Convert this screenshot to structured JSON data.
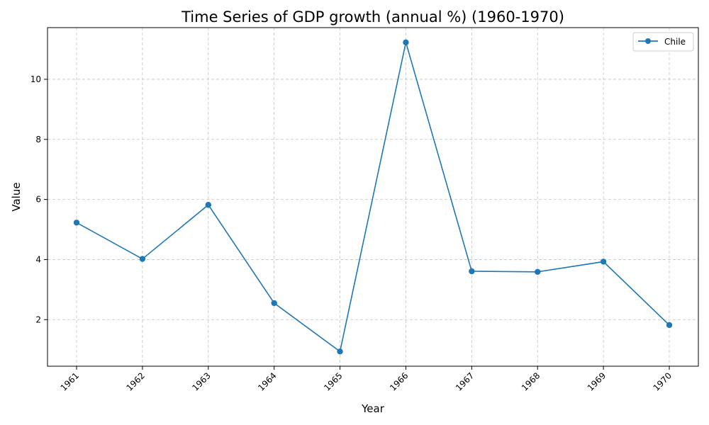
{
  "chart_data": {
    "type": "line",
    "title": "Time Series of GDP growth (annual %) (1960-1970)",
    "xlabel": "Year",
    "ylabel": "Value",
    "categories": [
      "1961",
      "1962",
      "1963",
      "1964",
      "1965",
      "1966",
      "1967",
      "1968",
      "1969",
      "1970"
    ],
    "series": [
      {
        "name": "Chile",
        "color": "#1f77b4",
        "marker": "circle",
        "values": [
          5.23,
          4.02,
          5.82,
          2.55,
          0.94,
          11.23,
          3.61,
          3.59,
          3.93,
          1.82
        ]
      }
    ],
    "ylim": [
      0.45,
      11.72
    ],
    "yticks": [
      2,
      4,
      6,
      8,
      10
    ],
    "grid": true,
    "legend_position": "top-right",
    "x_tick_rotation": 45
  }
}
